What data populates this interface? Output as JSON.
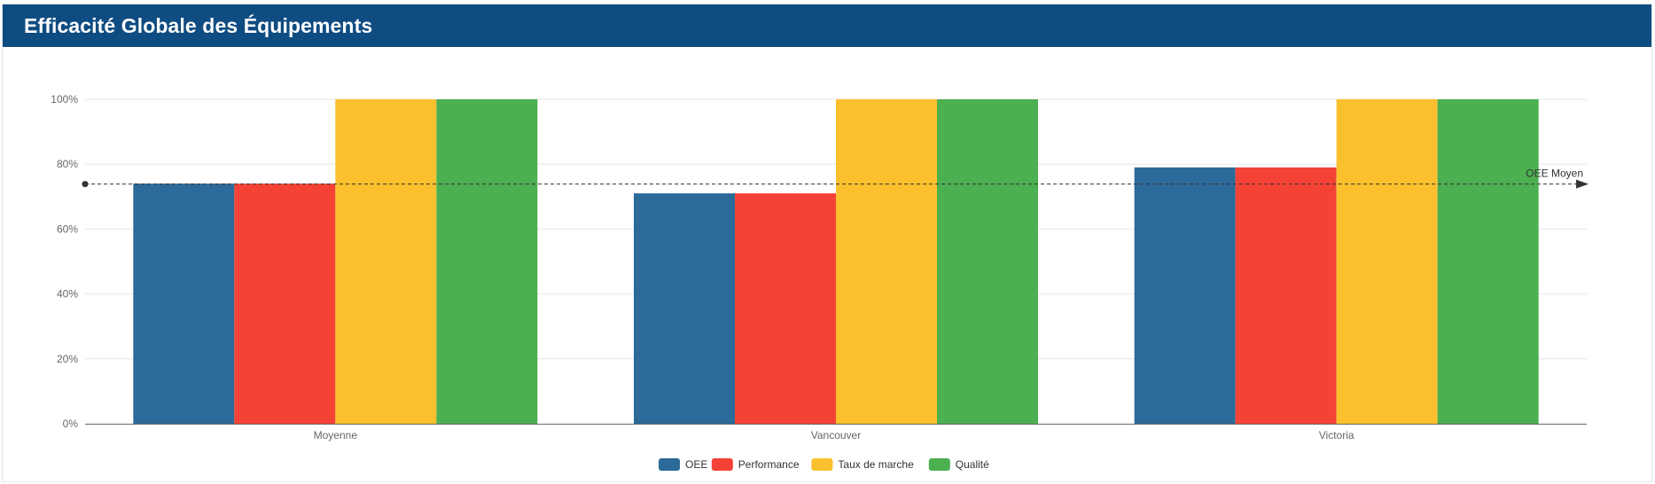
{
  "header": {
    "title": "Efficacité Globale des Équipements"
  },
  "chart_data": {
    "type": "bar",
    "title": "",
    "categories": [
      "Moyenne",
      "Vancouver",
      "Victoria"
    ],
    "series": [
      {
        "name": "OEE",
        "color": "#2b6a99",
        "values": [
          74,
          71,
          79
        ]
      },
      {
        "name": "Performance",
        "color": "#f44336",
        "values": [
          74,
          71,
          79
        ]
      },
      {
        "name": "Taux de marche",
        "color": "#fbc02d",
        "values": [
          100,
          100,
          100
        ]
      },
      {
        "name": "Qualité",
        "color": "#4caf50",
        "values": [
          100,
          100,
          100
        ]
      }
    ],
    "ylim": [
      0,
      100
    ],
    "yticks": [
      "0%",
      "20%",
      "40%",
      "60%",
      "80%",
      "100%"
    ],
    "ytick_values": [
      0,
      20,
      40,
      60,
      80,
      100
    ],
    "grid": true,
    "legend": "bottom-center",
    "reference_line": {
      "label": "OEE Moyen",
      "value": 74
    }
  }
}
